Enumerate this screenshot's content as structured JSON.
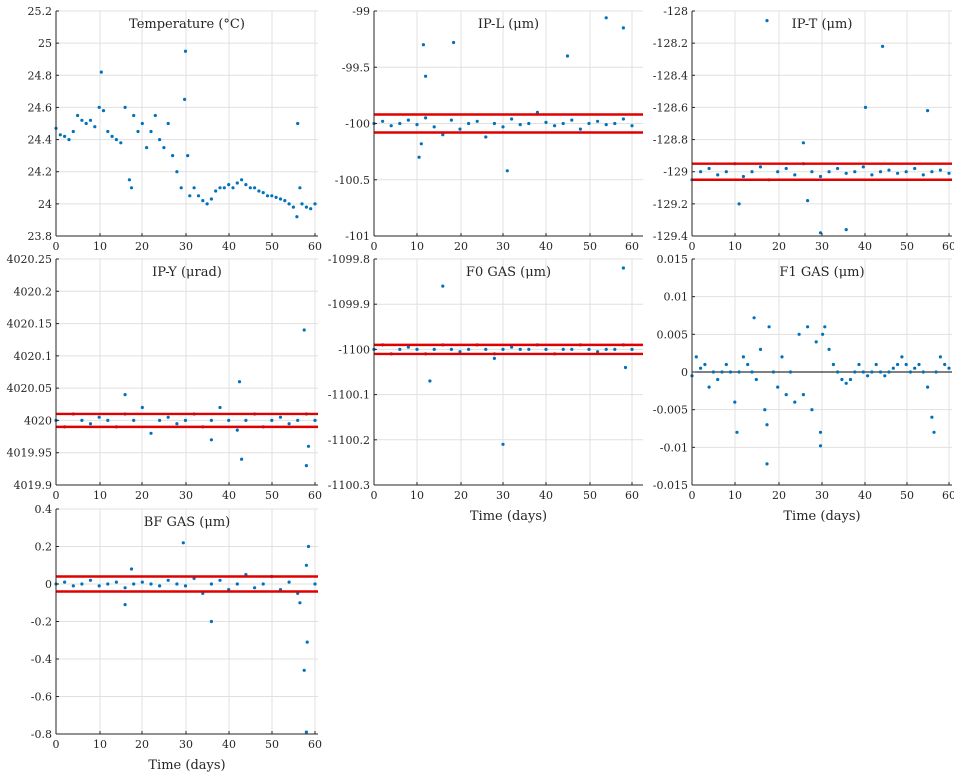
{
  "colors": {
    "points": "#0072BD",
    "limits": "#E00000",
    "zero": "#000000",
    "grid": "#e0e0e0",
    "axis": "#262626"
  },
  "chart_data": [
    {
      "type": "scatter",
      "title": "Temperature (°C)",
      "xlabel": "",
      "xlim": [
        0,
        60
      ],
      "ylim": [
        23.8,
        25.2
      ],
      "xticks": [
        "0",
        "10",
        "20",
        "30",
        "40",
        "50",
        "60"
      ],
      "yticks": [
        "23.8",
        "24",
        "24.2",
        "24.4",
        "24.6",
        "24.8",
        "25",
        "25.2"
      ],
      "grid": true,
      "series": [
        {
          "x": [
            0,
            1,
            2,
            3,
            4,
            5,
            6,
            7,
            8,
            9,
            10,
            10.5,
            11,
            12,
            13,
            14,
            15,
            16,
            17,
            17.5,
            18,
            19,
            20,
            21,
            22,
            23,
            24,
            25,
            26,
            27,
            28,
            29,
            29.8,
            30,
            30.5,
            31,
            32,
            33,
            34,
            35,
            36,
            37,
            38,
            39,
            40,
            41,
            42,
            43,
            44,
            45,
            46,
            47,
            48,
            49,
            50,
            51,
            52,
            53,
            54,
            55,
            55.8,
            56,
            56.5,
            57,
            58,
            59,
            60
          ],
          "y": [
            24.47,
            24.43,
            24.42,
            24.4,
            24.45,
            24.55,
            24.52,
            24.5,
            24.52,
            24.48,
            24.6,
            24.82,
            24.58,
            24.45,
            24.42,
            24.4,
            24.38,
            24.6,
            24.15,
            24.1,
            24.55,
            24.45,
            24.5,
            24.35,
            24.45,
            24.55,
            24.4,
            24.35,
            24.5,
            24.3,
            24.2,
            24.1,
            24.65,
            24.95,
            24.3,
            24.05,
            24.1,
            24.05,
            24.02,
            24.0,
            24.03,
            24.08,
            24.1,
            24.1,
            24.12,
            24.1,
            24.13,
            24.15,
            24.12,
            24.1,
            24.1,
            24.08,
            24.07,
            24.05,
            24.05,
            24.04,
            24.03,
            24.02,
            24.0,
            23.98,
            23.92,
            24.5,
            24.1,
            24.0,
            23.98,
            23.97,
            24.0
          ]
        }
      ]
    },
    {
      "type": "scatter",
      "title": "IP-L (μm)",
      "xlabel": "",
      "xlim": [
        0,
        60
      ],
      "ylim": [
        -101,
        -99
      ],
      "xticks": [
        "0",
        "10",
        "20",
        "30",
        "40",
        "50",
        "60"
      ],
      "yticks": [
        "-101",
        "-100.5",
        "-100",
        "-99.5",
        "-99"
      ],
      "grid": true,
      "limits": [
        -100.08,
        -99.92
      ],
      "series": [
        {
          "x": [
            0,
            2,
            4,
            6,
            8,
            10,
            11,
            12,
            14,
            16,
            18,
            20,
            22,
            24,
            26,
            28,
            30,
            32,
            34,
            36,
            38,
            40,
            42,
            44,
            46,
            48,
            50,
            52,
            54,
            56,
            58,
            60,
            11.5,
            18.5,
            31,
            45,
            54,
            58,
            12,
            10.5
          ],
          "y": [
            -100.0,
            -99.98,
            -100.02,
            -100.0,
            -99.97,
            -100.01,
            -100.18,
            -99.95,
            -100.03,
            -100.1,
            -99.97,
            -100.05,
            -100.0,
            -99.98,
            -100.12,
            -100.0,
            -100.03,
            -99.96,
            -100.01,
            -100.0,
            -99.9,
            -99.99,
            -100.02,
            -100.0,
            -99.97,
            -100.05,
            -100.0,
            -99.98,
            -100.01,
            -100.0,
            -99.96,
            -100.02,
            -99.3,
            -99.28,
            -100.42,
            -99.4,
            -99.06,
            -99.15,
            -99.58,
            -100.3
          ]
        }
      ]
    },
    {
      "type": "scatter",
      "title": "IP-T (μm)",
      "xlabel": "",
      "xlim": [
        0,
        60
      ],
      "ylim": [
        -129.4,
        -128
      ],
      "xticks": [
        "0",
        "10",
        "20",
        "30",
        "40",
        "50",
        "60"
      ],
      "yticks": [
        "-129.4",
        "-129.2",
        "-129",
        "-128.8",
        "-128.6",
        "-128.4",
        "-128.2",
        "-128"
      ],
      "grid": true,
      "limits": [
        -129.05,
        -128.95
      ],
      "series": [
        {
          "x": [
            0,
            2,
            4,
            6,
            8,
            10,
            12,
            14,
            16,
            18,
            20,
            22,
            24,
            26,
            28,
            30,
            32,
            34,
            36,
            38,
            40,
            42,
            44,
            46,
            48,
            50,
            52,
            54,
            56,
            58,
            60,
            17.5,
            44.5,
            40.5,
            55,
            30,
            36,
            11,
            27,
            26
          ],
          "y": [
            -129.05,
            -129.0,
            -128.98,
            -129.02,
            -129.0,
            -128.95,
            -129.03,
            -129.0,
            -128.97,
            -129.05,
            -129.0,
            -128.98,
            -129.02,
            -128.95,
            -129.0,
            -129.03,
            -129.0,
            -128.98,
            -129.01,
            -129.0,
            -128.97,
            -129.02,
            -129.0,
            -128.99,
            -129.01,
            -129.0,
            -128.98,
            -129.02,
            -129.0,
            -128.99,
            -129.01,
            -128.06,
            -128.22,
            -128.6,
            -128.62,
            -129.38,
            -129.36,
            -129.2,
            -129.18,
            -128.82
          ]
        }
      ]
    },
    {
      "type": "scatter",
      "title": "IP-Y (μrad)",
      "xlabel": "",
      "xlim": [
        0,
        60
      ],
      "ylim": [
        4019.9,
        4020.25
      ],
      "xticks": [
        "0",
        "10",
        "20",
        "30",
        "40",
        "50",
        "60"
      ],
      "yticks": [
        "4019.9",
        "4019.95",
        "4020",
        "4020.05",
        "4020.1",
        "4020.15",
        "4020.2",
        "4020.25"
      ],
      "grid": true,
      "limits": [
        4019.99,
        4020.01
      ],
      "series": [
        {
          "x": [
            0,
            2,
            4,
            6,
            8,
            10,
            12,
            14,
            16,
            18,
            20,
            22,
            24,
            26,
            28,
            30,
            32,
            34,
            36,
            38,
            40,
            42,
            44,
            46,
            48,
            50,
            52,
            54,
            56,
            58,
            60,
            57.5,
            58,
            43,
            42.5,
            36,
            16,
            58.5
          ],
          "y": [
            4020.0,
            4019.99,
            4020.01,
            4020.0,
            4019.995,
            4020.005,
            4020.0,
            4019.99,
            4020.01,
            4020.0,
            4020.02,
            4019.98,
            4020.0,
            4020.005,
            4019.995,
            4020.0,
            4020.01,
            4019.99,
            4020.0,
            4020.02,
            4020.0,
            4019.985,
            4020.0,
            4020.01,
            4019.99,
            4020.0,
            4020.005,
            4019.995,
            4020.0,
            4020.01,
            4020.0,
            4020.14,
            4019.93,
            4019.94,
            4020.06,
            4019.97,
            4020.04,
            4019.96
          ]
        }
      ]
    },
    {
      "type": "scatter",
      "title": "F0 GAS (μm)",
      "xlabel": "Time (days)",
      "xlim": [
        0,
        60
      ],
      "ylim": [
        -1100.3,
        -1099.8
      ],
      "xticks": [
        "0",
        "10",
        "20",
        "30",
        "40",
        "50",
        "60"
      ],
      "yticks": [
        "-1100.3",
        "-1100.2",
        "-1100.1",
        "-1100",
        "-1099.9",
        "-1099.8"
      ],
      "grid": true,
      "limits": [
        -1100.01,
        -1099.99
      ],
      "series": [
        {
          "x": [
            0,
            2,
            4,
            6,
            8,
            10,
            12,
            14,
            16,
            18,
            20,
            22,
            24,
            26,
            28,
            30,
            32,
            34,
            36,
            38,
            40,
            42,
            44,
            46,
            48,
            50,
            52,
            54,
            56,
            58,
            60,
            16,
            58,
            30,
            13,
            58.5,
            28
          ],
          "y": [
            -1100.0,
            -1099.99,
            -1100.01,
            -1100.0,
            -1099.995,
            -1100.0,
            -1100.01,
            -1100.0,
            -1099.99,
            -1100.0,
            -1100.005,
            -1100.0,
            -1099.99,
            -1100.0,
            -1100.01,
            -1100.0,
            -1099.995,
            -1100.0,
            -1100.0,
            -1099.99,
            -1100.0,
            -1100.01,
            -1100.0,
            -1100.0,
            -1099.99,
            -1100.0,
            -1100.005,
            -1100.0,
            -1100.0,
            -1099.99,
            -1100.0,
            -1099.86,
            -1099.82,
            -1100.21,
            -1100.07,
            -1100.04,
            -1100.02
          ]
        }
      ]
    },
    {
      "type": "scatter",
      "title": "F1 GAS (μm)",
      "xlabel": "Time (days)",
      "xlim": [
        0,
        60
      ],
      "ylim": [
        -0.015,
        0.015
      ],
      "xticks": [
        "0",
        "10",
        "20",
        "30",
        "40",
        "50",
        "60"
      ],
      "yticks": [
        "-0.015",
        "-0.01",
        "-0.005",
        "0",
        "0.005",
        "0.01",
        "0.015"
      ],
      "grid": true,
      "zero_line": 0,
      "series": [
        {
          "x": [
            0,
            1,
            2,
            3,
            4,
            5,
            6,
            7,
            8,
            9,
            10,
            10.5,
            11,
            12,
            13,
            14,
            15,
            16,
            17,
            17.5,
            18,
            19,
            20,
            21,
            22,
            23,
            24,
            25,
            26,
            27,
            28,
            29,
            30,
            30.5,
            31,
            32,
            33,
            34,
            35,
            36,
            37,
            38,
            39,
            40,
            41,
            42,
            43,
            44,
            45,
            46,
            47,
            48,
            49,
            50,
            51,
            52,
            53,
            54,
            55,
            56,
            56.5,
            57,
            58,
            59,
            60,
            17.5,
            30,
            14.5
          ],
          "y": [
            -0.0005,
            0.002,
            0.0005,
            0.001,
            -0.002,
            0.0,
            -0.001,
            0.0,
            0.001,
            0.0,
            -0.004,
            -0.008,
            0.0,
            0.002,
            0.001,
            0.0,
            -0.001,
            0.003,
            -0.005,
            -0.007,
            0.006,
            0.0,
            -0.002,
            0.002,
            -0.003,
            0.0,
            -0.004,
            0.005,
            -0.003,
            0.006,
            -0.005,
            0.004,
            -0.008,
            0.005,
            0.006,
            0.003,
            0.001,
            0.0,
            -0.001,
            -0.0015,
            -0.001,
            0.0,
            0.001,
            0.0,
            -0.0005,
            0.0,
            0.001,
            0.0,
            -0.0005,
            0.0,
            0.0005,
            0.001,
            0.002,
            0.001,
            0.0,
            0.0005,
            0.001,
            0.0,
            -0.002,
            -0.006,
            -0.008,
            0.0,
            0.002,
            0.001,
            0.0005,
            -0.0122,
            -0.0098,
            0.0072
          ]
        }
      ]
    },
    {
      "type": "scatter",
      "title": "BF GAS (μm)",
      "xlabel": "Time (days)",
      "xlim": [
        0,
        60
      ],
      "ylim": [
        -0.8,
        0.4
      ],
      "xticks": [
        "0",
        "10",
        "20",
        "30",
        "40",
        "50",
        "60"
      ],
      "yticks": [
        "-0.8",
        "-0.6",
        "-0.4",
        "-0.2",
        "0",
        "0.2",
        "0.4"
      ],
      "grid": true,
      "limits": [
        -0.04,
        0.04
      ],
      "series": [
        {
          "x": [
            0,
            2,
            4,
            6,
            8,
            10,
            12,
            14,
            16,
            18,
            20,
            22,
            24,
            26,
            28,
            30,
            32,
            34,
            36,
            38,
            40,
            42,
            44,
            46,
            48,
            50,
            52,
            54,
            56,
            58,
            60,
            29.5,
            58.5,
            58,
            57.5,
            58.2,
            36,
            16,
            17.5,
            56.5
          ],
          "y": [
            0.0,
            0.01,
            -0.01,
            0.0,
            0.02,
            -0.01,
            0.0,
            0.01,
            -0.02,
            0.0,
            0.01,
            0.0,
            -0.01,
            0.02,
            0.0,
            -0.01,
            0.03,
            -0.05,
            0.0,
            0.02,
            -0.03,
            0.0,
            0.05,
            -0.02,
            0.0,
            0.04,
            -0.03,
            0.01,
            -0.05,
            0.1,
            0.0,
            0.22,
            0.2,
            -0.79,
            -0.46,
            -0.31,
            -0.2,
            -0.11,
            0.08,
            -0.1
          ]
        }
      ]
    }
  ]
}
